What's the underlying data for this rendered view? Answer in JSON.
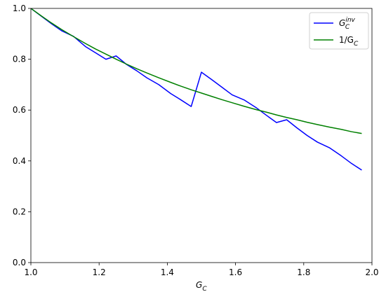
{
  "chart_data": {
    "type": "line",
    "xlabel": [
      "G",
      "C"
    ],
    "x": [
      1.0,
      1.03,
      1.06,
      1.09,
      1.125,
      1.16,
      1.19,
      1.22,
      1.25,
      1.28,
      1.31,
      1.34,
      1.375,
      1.41,
      1.44,
      1.47,
      1.5,
      1.53,
      1.56,
      1.59,
      1.625,
      1.66,
      1.69,
      1.72,
      1.75,
      1.78,
      1.81,
      1.84,
      1.875,
      1.91,
      1.94,
      1.97
    ],
    "series": [
      {
        "name": [
          "G",
          "C",
          "inv"
        ],
        "color": "#0000ff",
        "values": [
          1.0,
          0.97,
          0.94,
          0.912,
          0.89,
          0.85,
          0.825,
          0.8,
          0.813,
          0.78,
          0.755,
          0.727,
          0.7,
          0.665,
          0.64,
          0.614,
          0.749,
          0.72,
          0.69,
          0.66,
          0.64,
          0.61,
          0.58,
          0.551,
          0.562,
          0.53,
          0.5,
          0.474,
          0.452,
          0.42,
          0.39,
          0.364
        ]
      },
      {
        "name": [
          "1/G",
          "C"
        ],
        "color": "#008000",
        "values": [
          1.0,
          0.971,
          0.943,
          0.917,
          0.889,
          0.862,
          0.84,
          0.82,
          0.8,
          0.781,
          0.763,
          0.746,
          0.727,
          0.709,
          0.694,
          0.68,
          0.667,
          0.654,
          0.641,
          0.629,
          0.615,
          0.602,
          0.592,
          0.581,
          0.571,
          0.562,
          0.552,
          0.543,
          0.533,
          0.524,
          0.515,
          0.508
        ]
      }
    ],
    "xlim": [
      1.0,
      2.0
    ],
    "xticks": [
      {
        "value": 1.0,
        "label": "1.0"
      },
      1.2,
      1.4,
      1.6,
      1.8,
      {
        "value": 2.0,
        "label": "2.0"
      }
    ],
    "ylim": [
      0.0,
      1.0
    ],
    "yticks": [
      {
        "value": 0.0,
        "label": "0.0"
      },
      0.2,
      0.4,
      0.6,
      0.8,
      {
        "value": 1.0,
        "label": "1.0"
      }
    ],
    "grid": false,
    "legend": "upper-right"
  }
}
